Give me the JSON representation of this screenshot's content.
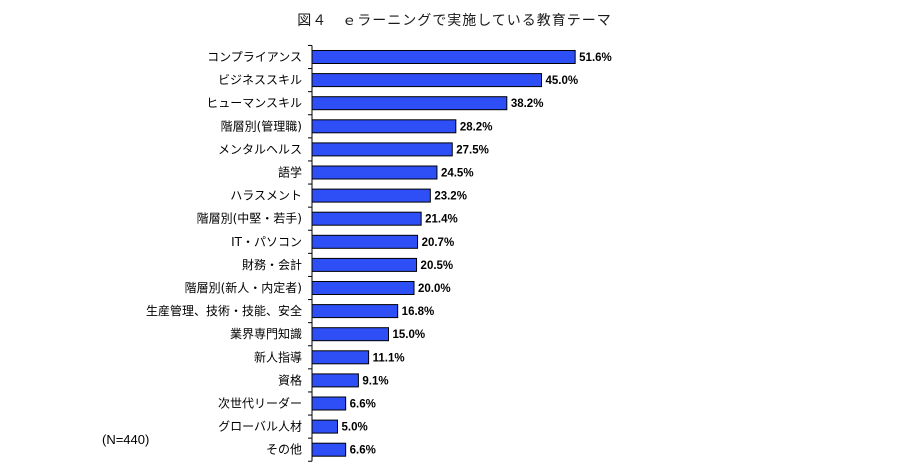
{
  "chart_data": {
    "type": "bar",
    "orientation": "horizontal",
    "title": "図４　ｅラーニングで実施している教育テーマ",
    "note": "(N=440)",
    "value_suffix": "%",
    "bar_color": "#2e4ff5",
    "categories": [
      "コンプライアンス",
      "ビジネススキル",
      "ヒューマンスキル",
      "階層別(管理職)",
      "メンタルヘルス",
      "語学",
      "ハラスメント",
      "階層別(中堅・若手)",
      "IT・パソコン",
      "財務・会計",
      "階層別(新人・内定者)",
      "生産管理、技術・技能、安全",
      "業界専門知識",
      "新人指導",
      "資格",
      "次世代リーダー",
      "グローバル人材",
      "その他"
    ],
    "values": [
      51.6,
      45.0,
      38.2,
      28.2,
      27.5,
      24.5,
      23.2,
      21.4,
      20.7,
      20.5,
      20.0,
      16.8,
      15.0,
      11.1,
      9.1,
      6.6,
      5.0,
      6.6
    ],
    "value_labels": [
      "51.6%",
      "45.0%",
      "38.2%",
      "28.2%",
      "27.5%",
      "24.5%",
      "23.2%",
      "21.4%",
      "20.7%",
      "20.5%",
      "20.0%",
      "16.8%",
      "15.0%",
      "11.1%",
      "9.1%",
      "6.6%",
      "5.0%",
      "6.6%"
    ],
    "xlim": [
      0,
      100
    ],
    "grid": false,
    "legend": "none"
  }
}
